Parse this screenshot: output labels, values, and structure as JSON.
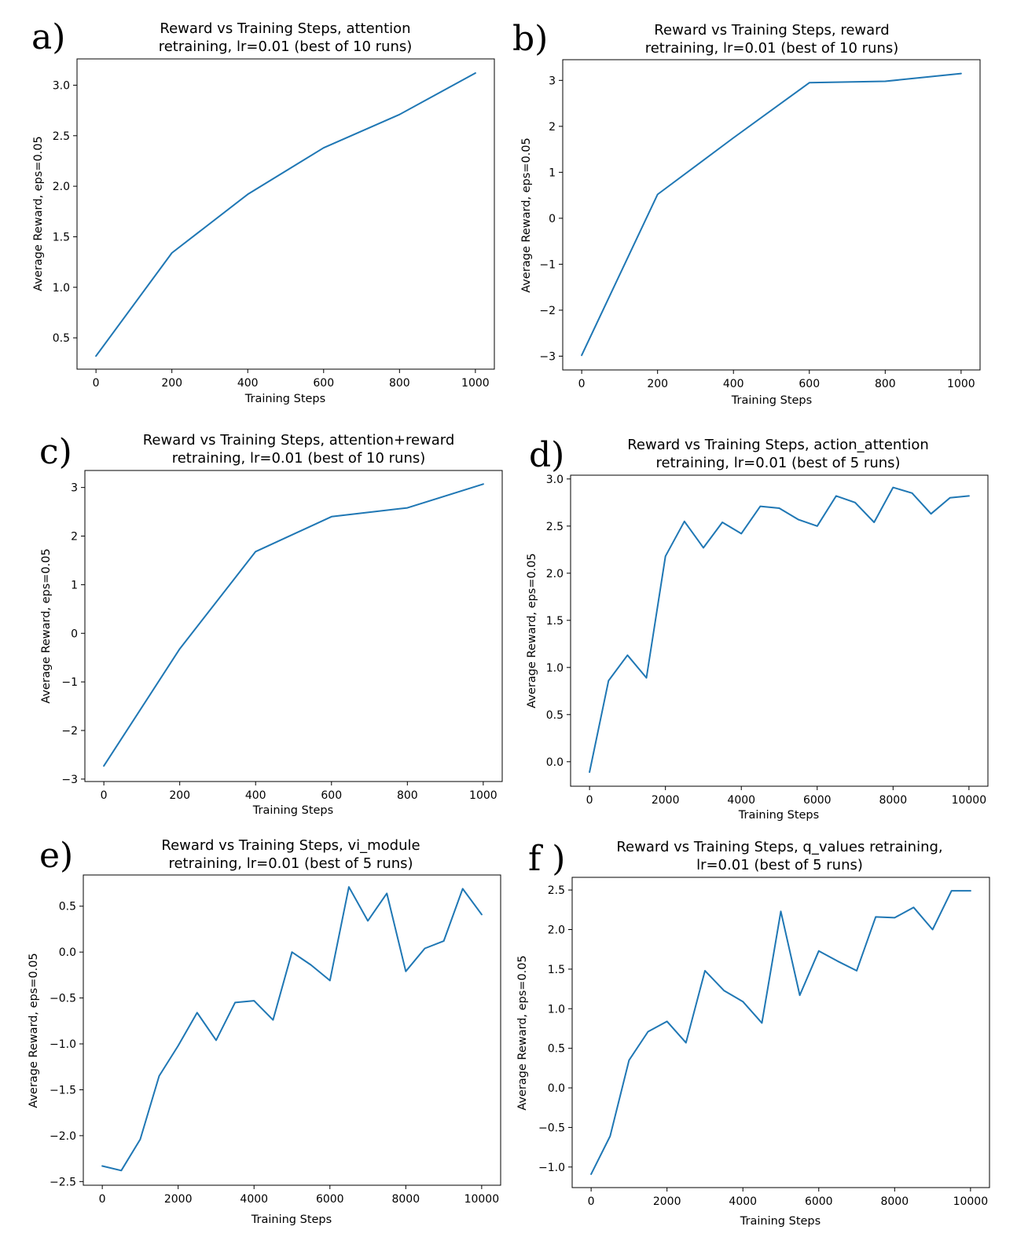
{
  "series_color": "#1f77b4",
  "chart_data": [
    {
      "panel_label": "a)",
      "type": "line",
      "title": [
        "Reward vs Training Steps, attention",
        "retraining, lr=0.01 (best of 10 runs)"
      ],
      "xlabel": "Training Steps",
      "ylabel": "Average Reward, eps=0.05",
      "xlim": [
        -50,
        1050
      ],
      "ylim": [
        0.19,
        3.26
      ],
      "xticks": [
        0,
        200,
        400,
        600,
        800,
        1000
      ],
      "yticks": [
        0.5,
        1.0,
        1.5,
        2.0,
        2.5,
        3.0
      ],
      "x": [
        0,
        200,
        400,
        600,
        800,
        1000
      ],
      "values": [
        0.32,
        1.34,
        1.92,
        2.38,
        2.71,
        3.12
      ]
    },
    {
      "panel_label": "b)",
      "type": "line",
      "title": [
        "Reward vs Training Steps, reward",
        "retraining, lr=0.01 (best of 10 runs)"
      ],
      "xlabel": "Training Steps",
      "ylabel": "Average Reward, eps=0.05",
      "xlim": [
        -50,
        1050
      ],
      "ylim": [
        -3.3,
        3.45
      ],
      "xticks": [
        0,
        200,
        400,
        600,
        800,
        1000
      ],
      "yticks": [
        -3,
        -2,
        -1,
        0,
        1,
        2,
        3
      ],
      "x": [
        0,
        200,
        400,
        600,
        800,
        1000
      ],
      "values": [
        -2.98,
        0.52,
        1.75,
        2.95,
        2.98,
        3.15
      ]
    },
    {
      "panel_label": "c)",
      "type": "line",
      "title": [
        "Reward vs Training Steps, attention+reward",
        "retraining, lr=0.01 (best of 10 runs)"
      ],
      "xlabel": "Training Steps",
      "ylabel": "Average Reward, eps=0.05",
      "xlim": [
        -50,
        1050
      ],
      "ylim": [
        -3.05,
        3.35
      ],
      "xticks": [
        0,
        200,
        400,
        600,
        800,
        1000
      ],
      "yticks": [
        -3,
        -2,
        -1,
        0,
        1,
        2,
        3
      ],
      "x": [
        0,
        200,
        400,
        600,
        800,
        1000
      ],
      "values": [
        -2.73,
        -0.32,
        1.68,
        2.4,
        2.58,
        3.07
      ]
    },
    {
      "panel_label": "d)",
      "type": "line",
      "title": [
        "Reward vs Training Steps, action_attention",
        "retraining, lr=0.01 (best of 5 runs)"
      ],
      "xlabel": "Training Steps",
      "ylabel": "Average Reward, eps=0.05",
      "xlim": [
        -500,
        10500
      ],
      "ylim": [
        -0.26,
        3.04
      ],
      "xticks": [
        0,
        2000,
        4000,
        6000,
        8000,
        10000
      ],
      "yticks": [
        0.0,
        0.5,
        1.0,
        1.5,
        2.0,
        2.5,
        3.0
      ],
      "x": [
        0,
        500,
        1000,
        1500,
        2000,
        2500,
        3000,
        3500,
        4000,
        4500,
        5000,
        5500,
        6000,
        6500,
        7000,
        7500,
        8000,
        8500,
        9000,
        9500,
        10000
      ],
      "values": [
        -0.11,
        0.86,
        1.13,
        0.89,
        2.18,
        2.55,
        2.27,
        2.54,
        2.42,
        2.71,
        2.69,
        2.57,
        2.5,
        2.82,
        2.75,
        2.54,
        2.91,
        2.85,
        2.63,
        2.8,
        2.82
      ]
    },
    {
      "panel_label": "e)",
      "type": "line",
      "title": [
        "Reward vs Training Steps, vi_module",
        "retraining, lr=0.01 (best of 5 runs)"
      ],
      "xlabel": "Training Steps",
      "ylabel": "Average Reward, eps=0.05",
      "xlim": [
        -500,
        10500
      ],
      "ylim": [
        -2.54,
        0.84
      ],
      "xticks": [
        0,
        2000,
        4000,
        6000,
        8000,
        10000
      ],
      "yticks": [
        -2.5,
        -2.0,
        -1.5,
        -1.0,
        -0.5,
        0.0,
        0.5
      ],
      "x": [
        0,
        500,
        1000,
        1500,
        2000,
        2500,
        3000,
        3500,
        4000,
        4500,
        5000,
        5500,
        6000,
        6500,
        7000,
        7500,
        8000,
        8500,
        9000,
        9500,
        10000
      ],
      "values": [
        -2.33,
        -2.38,
        -2.04,
        -1.35,
        -1.02,
        -0.66,
        -0.96,
        -0.55,
        -0.53,
        -0.74,
        0.0,
        -0.14,
        -0.31,
        0.71,
        0.34,
        0.64,
        -0.21,
        0.04,
        0.12,
        0.69,
        0.41
      ]
    },
    {
      "panel_label": "f )",
      "type": "line",
      "title": [
        "Reward vs Training Steps, q_values retraining,",
        "lr=0.01 (best of 5 runs)"
      ],
      "xlabel": "Training Steps",
      "ylabel": "Average Reward, eps=0.05",
      "xlim": [
        -500,
        10500
      ],
      "ylim": [
        -1.26,
        2.66
      ],
      "xticks": [
        0,
        2000,
        4000,
        6000,
        8000,
        10000
      ],
      "yticks": [
        -1.0,
        -0.5,
        0.0,
        0.5,
        1.0,
        1.5,
        2.0,
        2.5
      ],
      "x": [
        0,
        500,
        1000,
        1500,
        2000,
        2500,
        3000,
        3500,
        4000,
        4500,
        5000,
        5500,
        6000,
        6500,
        7000,
        7500,
        8000,
        8500,
        9000,
        9500,
        10000
      ],
      "values": [
        -1.09,
        -0.61,
        0.35,
        0.71,
        0.84,
        0.57,
        1.48,
        1.23,
        1.09,
        0.82,
        2.23,
        1.17,
        1.73,
        1.6,
        1.48,
        2.16,
        2.15,
        2.28,
        2.0,
        2.49,
        2.49
      ]
    }
  ]
}
